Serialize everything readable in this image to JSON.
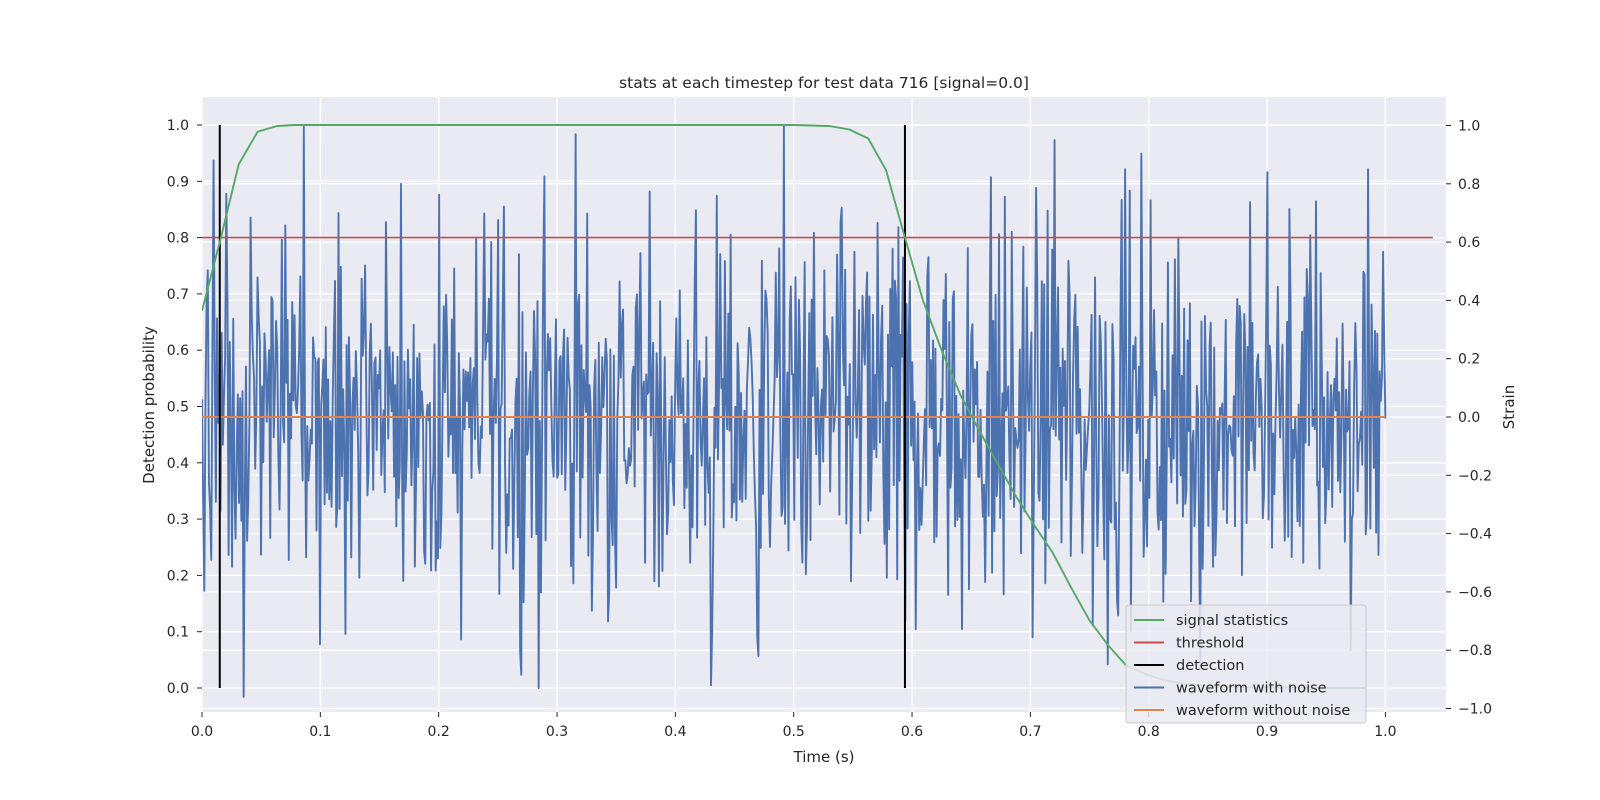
{
  "chart_data": {
    "type": "line",
    "title": "stats at each timestep for test data 716 [signal=0.0]",
    "xlabel": "Time (s)",
    "ylabel": "Detection probability",
    "y2label": "Strain",
    "xlim": [
      0.0,
      1.05
    ],
    "ylim": [
      -0.045,
      1.045
    ],
    "y2lim": [
      -1.03,
      1.07
    ],
    "x_ticks": [
      "0.0",
      "0.1",
      "0.2",
      "0.3",
      "0.4",
      "0.5",
      "0.6",
      "0.7",
      "0.8",
      "0.9",
      "1.0"
    ],
    "y_ticks": [
      "0.0",
      "0.1",
      "0.2",
      "0.3",
      "0.4",
      "0.5",
      "0.6",
      "0.7",
      "0.8",
      "0.9",
      "1.0"
    ],
    "y2_ticks": [
      "−1.0",
      "−0.8",
      "−0.6",
      "−0.4",
      "−0.2",
      "0.0",
      "0.2",
      "0.4",
      "0.6",
      "0.8",
      "1.0"
    ],
    "grid": true,
    "legend_position": "lower-right",
    "legend": [
      "signal statistics",
      "threshold",
      "detection",
      "waveform with noise",
      "waveform without noise"
    ],
    "colors": {
      "signal_statistics": "#55a868",
      "threshold": "#c44e52",
      "detection": "#000000",
      "waveform_with_noise": "#4c72b0",
      "waveform_without_noise": "#dd8452",
      "plot_background": "#eaeaf2",
      "grid": "#ffffff"
    },
    "series": [
      {
        "name": "signal statistics",
        "axis": "left",
        "x": [
          0.0,
          0.016,
          0.031,
          0.047,
          0.063,
          0.078,
          0.1,
          0.2,
          0.3,
          0.4,
          0.5,
          0.531,
          0.547,
          0.563,
          0.578,
          0.594,
          0.609,
          0.625,
          0.641,
          0.656,
          0.672,
          0.688,
          0.703,
          0.719,
          0.734,
          0.75,
          0.766,
          0.781,
          0.797,
          0.813,
          0.828,
          0.844,
          0.859,
          0.875,
          0.891,
          0.906,
          0.922,
          0.938,
          0.953,
          0.969,
          0.984
        ],
        "y": [
          0.67,
          0.8,
          0.93,
          0.988,
          0.998,
          1.0,
          1.0,
          1.0,
          1.0,
          1.0,
          1.0,
          0.998,
          0.992,
          0.976,
          0.92,
          0.8,
          0.69,
          0.6,
          0.52,
          0.46,
          0.4,
          0.34,
          0.29,
          0.24,
          0.18,
          0.12,
          0.075,
          0.04,
          0.025,
          0.014,
          0.008,
          0.005,
          0.003,
          0.002,
          0.001,
          0.001,
          0.001,
          0.0,
          0.0,
          0.0,
          0.0
        ]
      },
      {
        "name": "threshold",
        "axis": "left",
        "x": [
          0.0,
          1.04
        ],
        "y": [
          0.8,
          0.8
        ]
      },
      {
        "name": "detection",
        "axis": "left",
        "x": [
          0.015,
          0.594
        ],
        "y_range": [
          0.0,
          1.0
        ]
      },
      {
        "name": "waveform with noise",
        "axis": "right",
        "x_range": [
          0.0,
          1.0
        ],
        "n_points": 1024,
        "min": -0.96,
        "max": 1.0,
        "mean": 0.0,
        "std": 0.33,
        "peaks": [
          {
            "x": 0.01,
            "y": 0.88
          },
          {
            "x": 0.035,
            "y": -0.96
          },
          {
            "x": 0.168,
            "y": 0.8
          },
          {
            "x": 0.1,
            "y": -0.78
          },
          {
            "x": 0.316,
            "y": 0.97
          },
          {
            "x": 0.43,
            "y": -0.92
          },
          {
            "x": 0.492,
            "y": 1.0
          },
          {
            "x": 0.47,
            "y": -0.82
          },
          {
            "x": 0.594,
            "y": -0.7
          },
          {
            "x": 0.72,
            "y": 0.95
          },
          {
            "x": 0.78,
            "y": 0.85
          },
          {
            "x": 0.9,
            "y": 0.84
          },
          {
            "x": 0.985,
            "y": 0.85
          },
          {
            "x": 0.971,
            "y": -0.8
          }
        ]
      },
      {
        "name": "waveform without noise",
        "axis": "right",
        "x": [
          0.0,
          1.0
        ],
        "y": [
          0.0,
          0.0
        ]
      }
    ]
  }
}
